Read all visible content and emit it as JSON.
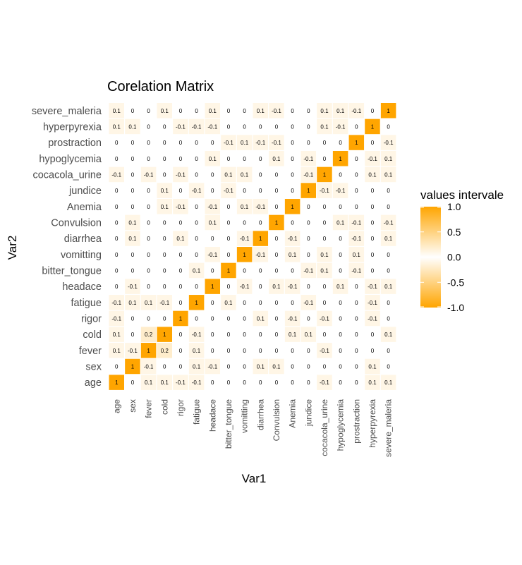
{
  "chart_data": {
    "type": "heatmap",
    "title": "Corelation Matrix",
    "xlabel": "Var1",
    "ylabel": "Var2",
    "categories": [
      "age",
      "sex",
      "fever",
      "cold",
      "rigor",
      "fatigue",
      "headace",
      "bitter_tongue",
      "vomitting",
      "diarrhea",
      "Convulsion",
      "Anemia",
      "jundice",
      "cocacola_urine",
      "hypoglycemia",
      "prostraction",
      "hyperpyrexia",
      "severe_maleria"
    ],
    "values": [
      [
        1,
        0,
        0.1,
        0.1,
        -0.1,
        -0.1,
        0,
        0,
        0,
        0,
        0,
        0,
        0,
        -0.1,
        0,
        0,
        0.1,
        0.1
      ],
      [
        0,
        1,
        -0.1,
        0,
        0,
        0.1,
        -0.1,
        0,
        0,
        0.1,
        0.1,
        0,
        0,
        0,
        0,
        0,
        0.1,
        0
      ],
      [
        0.1,
        -0.1,
        1,
        0.2,
        0,
        0.1,
        0,
        0,
        0,
        0,
        0,
        0,
        0,
        -0.1,
        0,
        0,
        0,
        0
      ],
      [
        0.1,
        0,
        0.2,
        1,
        0,
        -0.1,
        0,
        0,
        0,
        0,
        0,
        0.1,
        0.1,
        0,
        0,
        0,
        0,
        0.1
      ],
      [
        -0.1,
        0,
        0,
        0,
        1,
        0,
        0,
        0,
        0,
        0.1,
        0,
        -0.1,
        0,
        -0.1,
        0,
        0,
        -0.1,
        0
      ],
      [
        -0.1,
        0.1,
        0.1,
        -0.1,
        0,
        1,
        0,
        0.1,
        0,
        0,
        0,
        0,
        -0.1,
        0,
        0,
        0,
        -0.1,
        0
      ],
      [
        0,
        -0.1,
        0,
        0,
        0,
        0,
        1,
        0,
        -0.1,
        0,
        0.1,
        -0.1,
        0,
        0,
        0.1,
        0,
        -0.1,
        0.1
      ],
      [
        0,
        0,
        0,
        0,
        0,
        0.1,
        0,
        1,
        0,
        0,
        0,
        0,
        -0.1,
        0.1,
        0,
        -0.1,
        0,
        0
      ],
      [
        0,
        0,
        0,
        0,
        0,
        0,
        -0.1,
        0,
        1,
        -0.1,
        0,
        0.1,
        0,
        0.1,
        0,
        0.1,
        0,
        0
      ],
      [
        0,
        0.1,
        0,
        0,
        0.1,
        0,
        0,
        0,
        -0.1,
        1,
        0,
        -0.1,
        0,
        0,
        0,
        -0.1,
        0,
        0.1
      ],
      [
        0,
        0.1,
        0,
        0,
        0,
        0,
        0.1,
        0,
        0,
        0,
        1,
        0,
        0,
        0,
        0.1,
        -0.1,
        0,
        -0.1
      ],
      [
        0,
        0,
        0,
        0.1,
        -0.1,
        0,
        -0.1,
        0,
        0.1,
        -0.1,
        0,
        1,
        0,
        0,
        0,
        0,
        0,
        0
      ],
      [
        0,
        0,
        0,
        0.1,
        0,
        -0.1,
        0,
        -0.1,
        0,
        0,
        0,
        0,
        1,
        -0.1,
        -0.1,
        0,
        0,
        0
      ],
      [
        -0.1,
        0,
        -0.1,
        0,
        -0.1,
        0,
        0,
        0.1,
        0.1,
        0,
        0,
        0,
        -0.1,
        1,
        0,
        0,
        0.1,
        0.1
      ],
      [
        0,
        0,
        0,
        0,
        0,
        0,
        0.1,
        0,
        0,
        0,
        0.1,
        0,
        -0.1,
        0,
        1,
        0,
        -0.1,
        0.1
      ],
      [
        0,
        0,
        0,
        0,
        0,
        0,
        0,
        -0.1,
        0.1,
        -0.1,
        -0.1,
        0,
        0,
        0,
        0,
        1,
        0,
        -0.1
      ],
      [
        0.1,
        0.1,
        0,
        0,
        -0.1,
        -0.1,
        -0.1,
        0,
        0,
        0,
        0,
        0,
        0,
        0.1,
        -0.1,
        0,
        1,
        0
      ],
      [
        0.1,
        0,
        0,
        0.1,
        0,
        0,
        0.1,
        0,
        0,
        0.1,
        -0.1,
        0,
        0,
        0.1,
        0.1,
        -0.1,
        0,
        1
      ]
    ],
    "legend": {
      "title": "values intervale",
      "ticks": [
        "1.0",
        "0.5",
        "0.0",
        "-0.5",
        "-1.0"
      ],
      "placement": "right"
    },
    "colors": {
      "high": "#FFA500",
      "mid": "#FFFFFF",
      "low": "#FFA500"
    },
    "grid": false,
    "value_range": [
      -1,
      1
    ]
  }
}
